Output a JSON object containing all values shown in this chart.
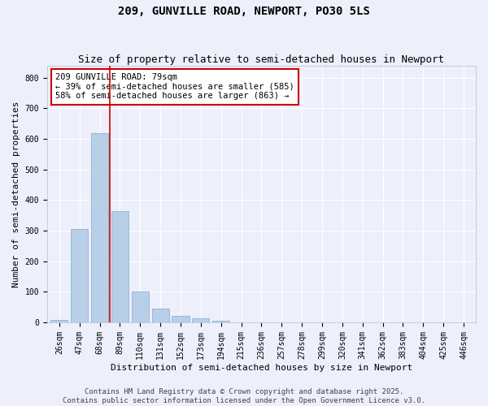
{
  "title1": "209, GUNVILLE ROAD, NEWPORT, PO30 5LS",
  "title2": "Size of property relative to semi-detached houses in Newport",
  "xlabel": "Distribution of semi-detached houses by size in Newport",
  "ylabel": "Number of semi-detached properties",
  "categories": [
    "26sqm",
    "47sqm",
    "68sqm",
    "89sqm",
    "110sqm",
    "131sqm",
    "152sqm",
    "173sqm",
    "194sqm",
    "215sqm",
    "236sqm",
    "257sqm",
    "278sqm",
    "299sqm",
    "320sqm",
    "341sqm",
    "362sqm",
    "383sqm",
    "404sqm",
    "425sqm",
    "446sqm"
  ],
  "values": [
    8,
    305,
    620,
    365,
    100,
    45,
    20,
    12,
    5,
    0,
    0,
    0,
    0,
    0,
    0,
    0,
    0,
    0,
    0,
    0,
    0
  ],
  "bar_color": "#b8cfe8",
  "bar_edgecolor": "#7fa8cc",
  "vline_x": 2.5,
  "vline_color": "#cc0000",
  "annotation_text": "209 GUNVILLE ROAD: 79sqm\n← 39% of semi-detached houses are smaller (585)\n58% of semi-detached houses are larger (863) →",
  "annotation_box_edgecolor": "#cc0000",
  "ylim": [
    0,
    840
  ],
  "yticks": [
    0,
    100,
    200,
    300,
    400,
    500,
    600,
    700,
    800
  ],
  "footer1": "Contains HM Land Registry data © Crown copyright and database right 2025.",
  "footer2": "Contains public sector information licensed under the Open Government Licence v3.0.",
  "background_color": "#edf0fb",
  "plot_bg_color": "#edf0fb",
  "title_fontsize": 10,
  "subtitle_fontsize": 9,
  "axis_label_fontsize": 8,
  "tick_fontsize": 7,
  "annotation_fontsize": 7.5,
  "footer_fontsize": 6.5
}
